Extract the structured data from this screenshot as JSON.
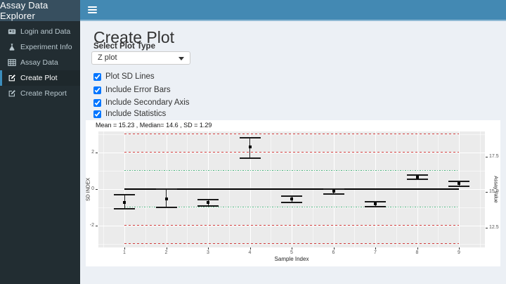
{
  "app": {
    "title": "Assay Data Explorer"
  },
  "navbar": {
    "menu_icon": "hamburger-icon"
  },
  "theme": {
    "navbar_blue": "#4389b3",
    "logo_bg": "#374f5f",
    "sidebar_bg": "#222d32",
    "active_accent": "#3c8dbc",
    "content_bg": "#ecf0f5",
    "panel_bg": "#ebebeb",
    "sd_line_red": "#cf3a3a",
    "sd_line_green": "#4eb882",
    "center_line_black": "#000000"
  },
  "sidebar": {
    "items": [
      {
        "label": "Login and Data",
        "icon": "card-icon",
        "active": false
      },
      {
        "label": "Experiment Info",
        "icon": "flask-icon",
        "active": false
      },
      {
        "label": "Assay Data",
        "icon": "table-icon",
        "active": false
      },
      {
        "label": "Create Plot",
        "icon": "edit-icon",
        "active": true
      },
      {
        "label": "Create Report",
        "icon": "edit-icon",
        "active": false
      }
    ]
  },
  "main": {
    "page_title": "Create Plot",
    "plot_type": {
      "label": "Select Plot Type",
      "selected": "Z plot"
    },
    "checkboxes": [
      {
        "label": "Plot SD Lines",
        "checked": true
      },
      {
        "label": "Include Error Bars",
        "checked": true
      },
      {
        "label": "Include Secondary Axis",
        "checked": true
      },
      {
        "label": "Include Statistics",
        "checked": true
      }
    ]
  },
  "chart_data": {
    "type": "scatter",
    "subtype": "z-plot-with-error-bars",
    "title": "Mean = 15.23 , Median= 14.6 , SD = 1.29",
    "stats": {
      "mean": 15.23,
      "median": 14.6,
      "sd": 1.29
    },
    "xlabel": "Sample Index",
    "ylabel": "SD INDEX",
    "ylabel_right": "Assay Value",
    "xlim": [
      0.38,
      9.62
    ],
    "ylim": [
      -3.2,
      3.13
    ],
    "grid": true,
    "axes": {
      "x_ticks": [
        1,
        2,
        3,
        4,
        5,
        6,
        7,
        8,
        9
      ],
      "y_left_ticks": [
        {
          "v": 2,
          "label": "2"
        },
        {
          "v": 0,
          "label": "0"
        },
        {
          "v": -2,
          "label": "-2"
        }
      ],
      "y_left_minor": [
        -3,
        -1,
        1,
        3
      ],
      "y_right_ticks": [
        {
          "v": 1.76,
          "label": "17.5"
        },
        {
          "v": -0.18,
          "label": "15.0"
        },
        {
          "v": -2.12,
          "label": "12.5"
        }
      ]
    },
    "ref_lines": [
      {
        "z": 3,
        "color": "#cf3a3a",
        "style": "dashed"
      },
      {
        "z": 2,
        "color": "#cf3a3a",
        "style": "dashed"
      },
      {
        "z": 1,
        "color": "#4eb882",
        "style": "dotdash"
      },
      {
        "z": 0,
        "color": "#000000",
        "style": "solid"
      },
      {
        "z": -1,
        "color": "#4eb882",
        "style": "dotdash"
      },
      {
        "z": -2,
        "color": "#cf3a3a",
        "style": "dashed"
      },
      {
        "z": -3,
        "color": "#cf3a3a",
        "style": "dashed"
      }
    ],
    "points": [
      {
        "x": 1,
        "z": -0.76,
        "lo": -1.08,
        "hi": -0.32
      },
      {
        "x": 2,
        "z": -0.54,
        "lo": -1.03,
        "hi": -0.02
      },
      {
        "x": 3,
        "z": -0.76,
        "lo": -0.93,
        "hi": -0.6
      },
      {
        "x": 4,
        "z": 2.28,
        "lo": 1.66,
        "hi": 2.78
      },
      {
        "x": 5,
        "z": -0.57,
        "lo": -0.74,
        "hi": -0.41
      },
      {
        "x": 6,
        "z": -0.15,
        "lo": -0.28,
        "hi": -0.02
      },
      {
        "x": 7,
        "z": -0.84,
        "lo": -0.97,
        "hi": -0.71
      },
      {
        "x": 8,
        "z": 0.65,
        "lo": 0.53,
        "hi": 0.75
      },
      {
        "x": 9,
        "z": 0.27,
        "lo": 0.14,
        "hi": 0.4
      }
    ]
  }
}
